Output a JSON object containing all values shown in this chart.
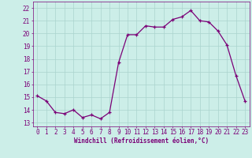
{
  "x": [
    0,
    1,
    2,
    3,
    4,
    5,
    6,
    7,
    8,
    9,
    10,
    11,
    12,
    13,
    14,
    15,
    16,
    17,
    18,
    19,
    20,
    21,
    22,
    23
  ],
  "y": [
    15.1,
    14.7,
    13.8,
    13.7,
    14.0,
    13.4,
    13.6,
    13.3,
    13.8,
    17.7,
    19.9,
    19.9,
    20.6,
    20.5,
    20.5,
    21.1,
    21.3,
    21.8,
    21.0,
    20.9,
    20.2,
    19.1,
    16.7,
    14.7
  ],
  "line_color": "#7B0077",
  "marker": "+",
  "marker_size": 3,
  "marker_linewidth": 0.9,
  "xlabel": "Windchill (Refroidissement éolien,°C)",
  "xlabel_fontsize": 5.5,
  "ylabel_ticks": [
    13,
    14,
    15,
    16,
    17,
    18,
    19,
    20,
    21,
    22
  ],
  "xlim": [
    -0.5,
    23.5
  ],
  "ylim": [
    12.7,
    22.5
  ],
  "background_color": "#cceee8",
  "grid_color": "#aad4ce",
  "tick_label_fontsize": 5.5,
  "line_width": 0.9
}
